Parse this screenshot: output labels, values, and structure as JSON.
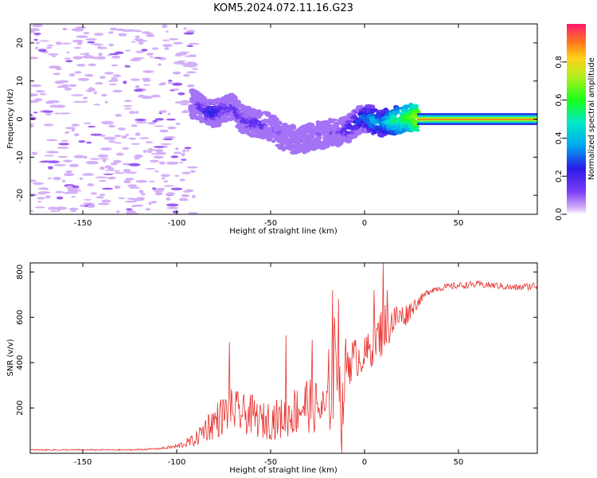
{
  "title": "KOM5.2024.072.11.16.G23",
  "chart_data": [
    {
      "type": "heatmap",
      "xlabel": "Height of straight line (km)",
      "ylabel": "Frequency (Hz)",
      "xlim": [
        -178,
        92
      ],
      "ylim": [
        -25,
        25
      ],
      "xticks": [
        -150,
        -100,
        -50,
        0,
        50
      ],
      "xtick_labels": [
        "-150",
        "-100",
        "-50",
        "0",
        "50"
      ],
      "yticks": [
        -20,
        -10,
        0,
        10,
        20
      ],
      "ytick_labels": [
        "-20",
        "-10",
        "0",
        "10",
        "20"
      ],
      "colorbar": {
        "label": "Normalized spectral amplitude",
        "range": [
          0,
          1
        ],
        "ticks": [
          0.0,
          0.2,
          0.4,
          0.6,
          0.8
        ],
        "tick_labels": [
          "0.0",
          "0.2",
          "0.4",
          "0.6",
          "0.8"
        ],
        "colormap": "gist_rainbow_r"
      },
      "ridge": {
        "x": [
          -90,
          -85,
          -80,
          -75,
          -70,
          -65,
          -60,
          -55,
          -50,
          -45,
          -40,
          -35,
          -30,
          -25,
          -20,
          -15,
          -10,
          -5,
          0,
          5,
          10,
          15,
          20,
          25,
          30,
          40,
          50,
          60,
          70,
          80,
          92
        ],
        "freq": [
          4,
          2,
          1.5,
          2.5,
          3,
          0,
          -1,
          -1.5,
          -2,
          -4,
          -5,
          -6,
          -5,
          -4,
          -4,
          -3.5,
          -3,
          -1,
          0.5,
          -0.5,
          -1,
          -0.5,
          0,
          0.5,
          0,
          0,
          0,
          0,
          0,
          0,
          0
        ],
        "amplitude": [
          0.15,
          0.25,
          0.3,
          0.22,
          0.2,
          0.2,
          0.22,
          0.2,
          0.15,
          0.12,
          0.12,
          0.12,
          0.12,
          0.12,
          0.13,
          0.15,
          0.25,
          0.3,
          0.35,
          0.45,
          0.4,
          0.55,
          0.6,
          0.7,
          0.85,
          0.88,
          0.9,
          0.9,
          0.9,
          0.9,
          0.9
        ]
      },
      "noise_region": {
        "x_range": [
          -178,
          -90
        ],
        "freq_range": [
          -25,
          25
        ],
        "amplitude": 0.03
      }
    },
    {
      "type": "line",
      "xlabel": "Height of straight line (km)",
      "ylabel": "SNR (v/v)",
      "xlim": [
        -178,
        92
      ],
      "ylim": [
        0,
        840
      ],
      "xticks": [
        -150,
        -100,
        -50,
        0,
        50
      ],
      "xtick_labels": [
        "-150",
        "-100",
        "-50",
        "0",
        "50"
      ],
      "yticks": [
        200,
        400,
        600,
        800
      ],
      "ytick_labels": [
        "200",
        "400",
        "600",
        "800"
      ],
      "color": "#e8322f",
      "series": [
        {
          "x": [
            -178,
            -150,
            -125,
            -110,
            -100,
            -90,
            -85,
            -80,
            -75,
            -70,
            -65,
            -60,
            -55,
            -50,
            -45,
            -40,
            -35,
            -30,
            -25,
            -20,
            -17,
            -15,
            -12,
            -10,
            -5,
            0,
            5,
            10,
            14,
            18,
            22,
            25,
            30,
            35,
            40,
            50,
            60,
            70,
            80,
            92
          ],
          "values": [
            15,
            15,
            15,
            20,
            30,
            60,
            110,
            140,
            170,
            190,
            170,
            170,
            140,
            150,
            150,
            170,
            200,
            220,
            200,
            180,
            310,
            480,
            130,
            400,
            420,
            430,
            480,
            550,
            580,
            600,
            610,
            640,
            680,
            720,
            730,
            740,
            745,
            740,
            730,
            740
          ],
          "noise": [
            3,
            3,
            3,
            4,
            10,
            30,
            60,
            80,
            90,
            100,
            90,
            90,
            80,
            90,
            90,
            100,
            120,
            130,
            120,
            110,
            250,
            180,
            160,
            120,
            90,
            80,
            100,
            120,
            90,
            60,
            50,
            40,
            20,
            15,
            15,
            15,
            15,
            15,
            15,
            18
          ],
          "spikes": [
            {
              "x": -72,
              "value": 490
            },
            {
              "x": -42,
              "value": 520
            },
            {
              "x": -28,
              "value": 500
            },
            {
              "x": -19,
              "value": 460
            },
            {
              "x": -17,
              "value": 720
            },
            {
              "x": -14,
              "value": 680
            },
            {
              "x": 5,
              "value": 720
            },
            {
              "x": 10,
              "value": 840
            },
            {
              "x": 12,
              "value": 720
            }
          ]
        }
      ]
    }
  ]
}
